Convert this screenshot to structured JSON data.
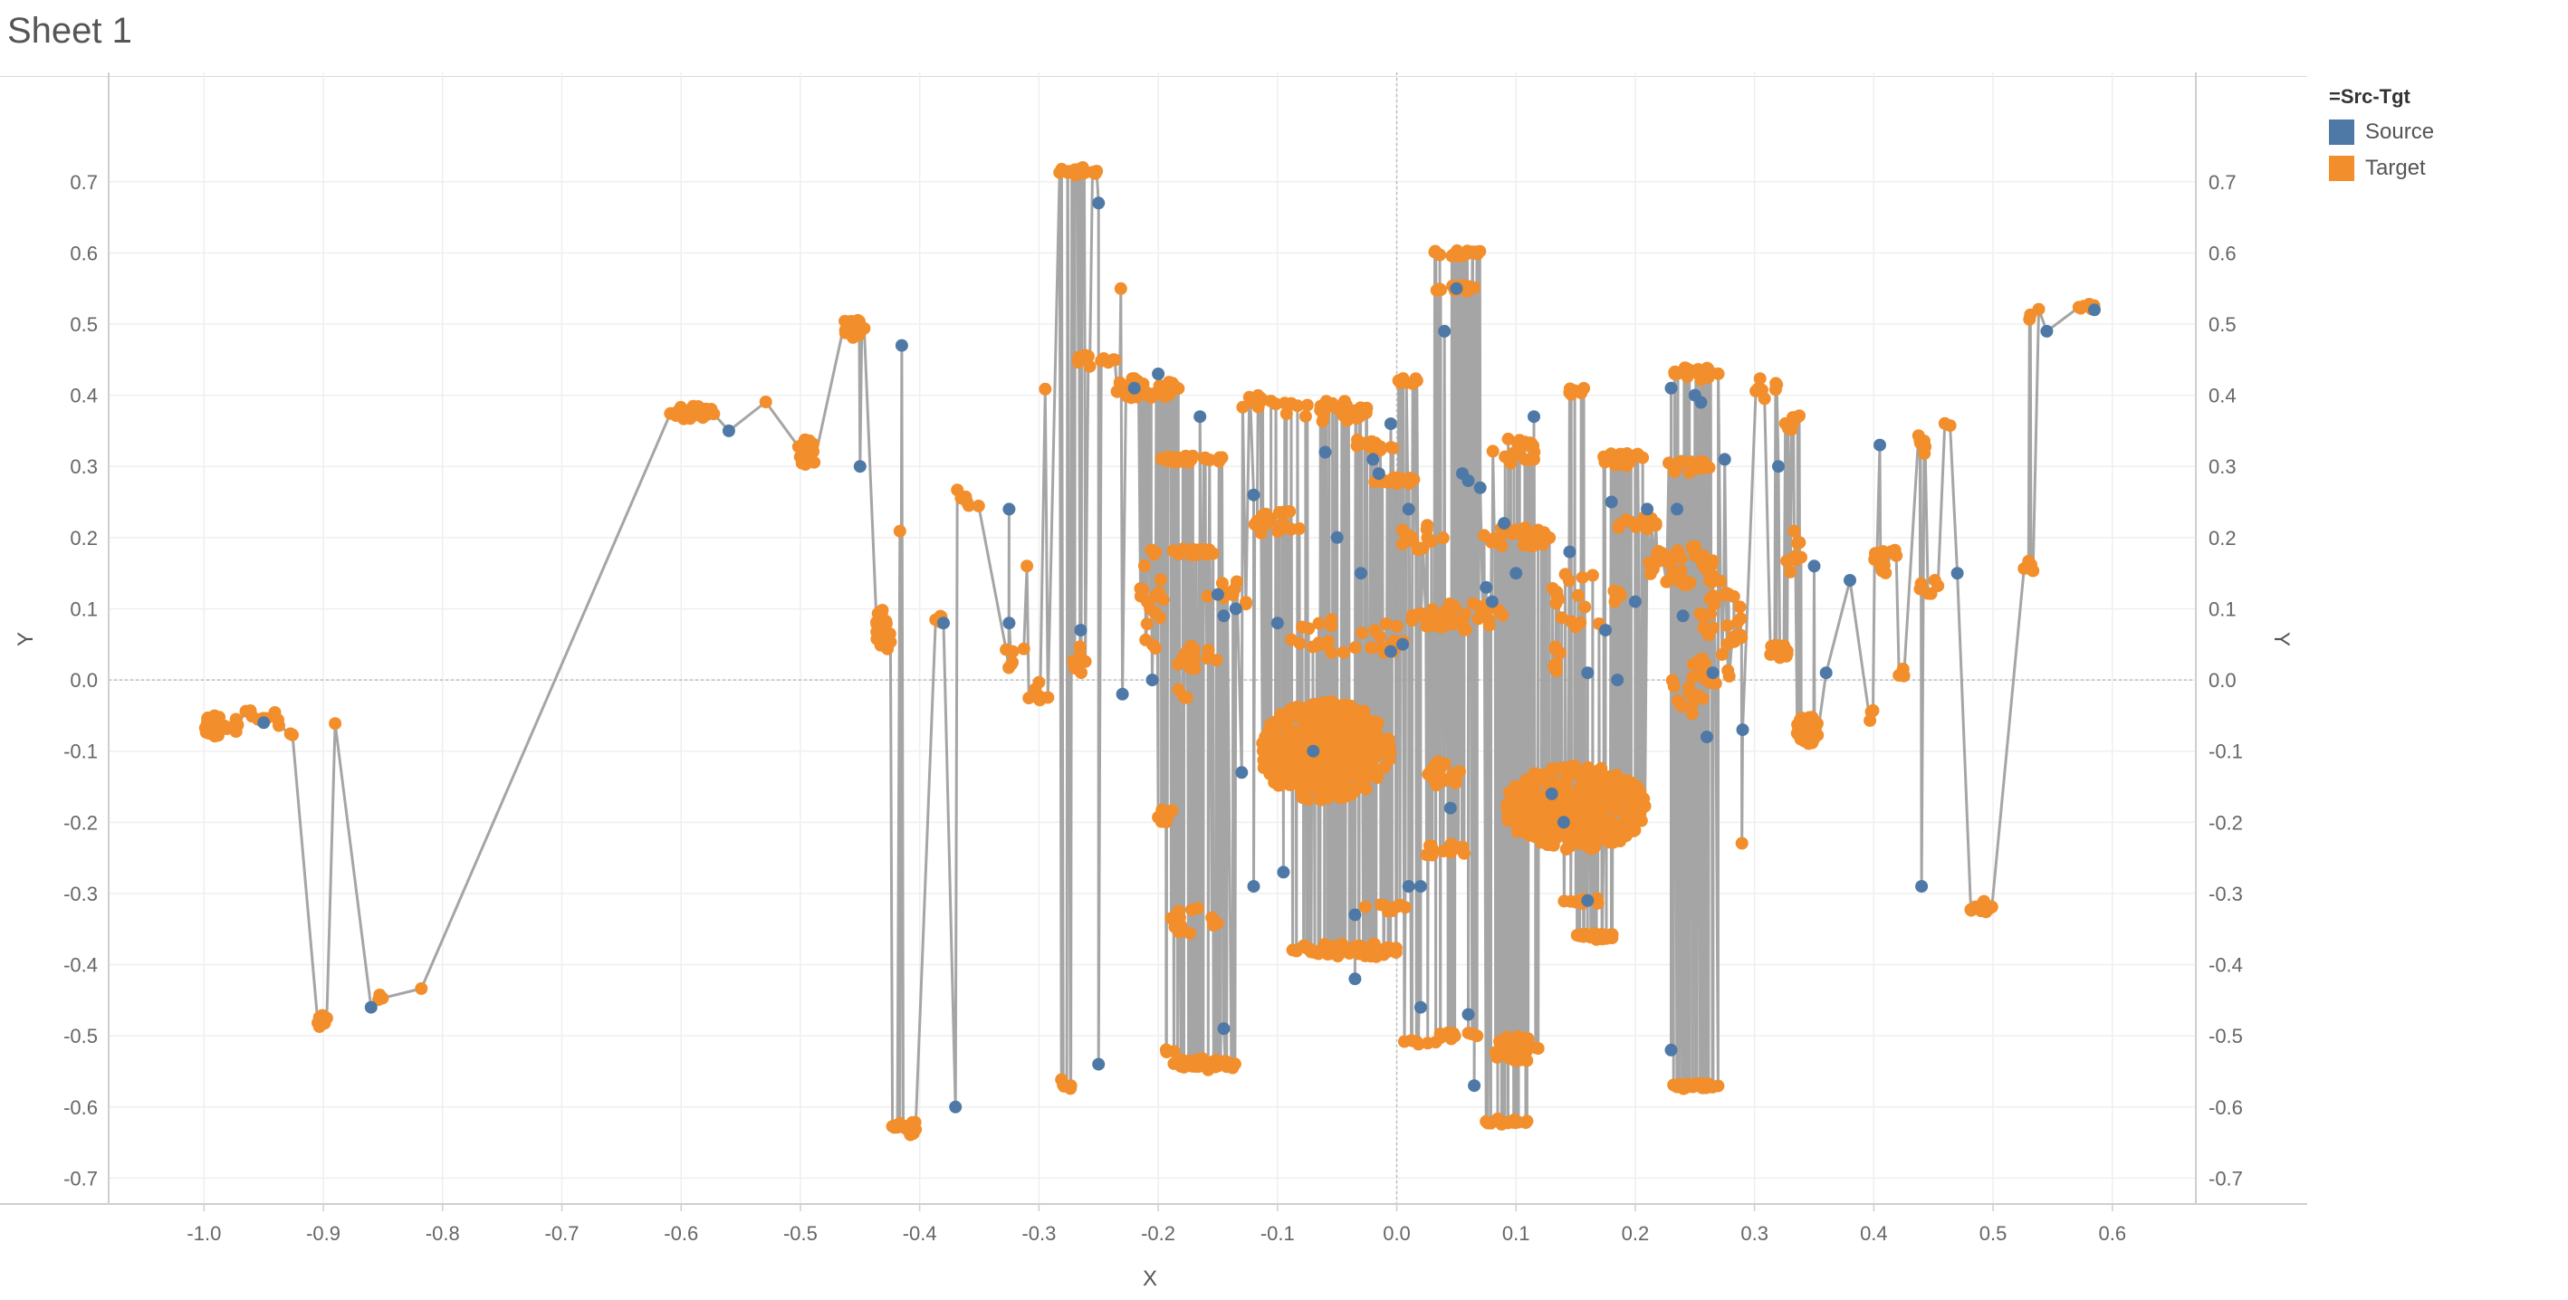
{
  "sheet": {
    "title": "Sheet 1"
  },
  "legend": {
    "title": "=Src-Tgt",
    "items": [
      {
        "label": "Source",
        "color": "#4e79a7"
      },
      {
        "label": "Target",
        "color": "#f28e2b"
      }
    ]
  },
  "chart_data": {
    "type": "scatter",
    "xlabel": "X",
    "ylabel": "Y",
    "xlim": [
      -1.08,
      0.67
    ],
    "ylim": [
      -0.73,
      0.79
    ],
    "x_ticks": [
      "-1.0",
      "-0.9",
      "-0.8",
      "-0.7",
      "-0.6",
      "-0.5",
      "-0.4",
      "-0.3",
      "-0.2",
      "-0.1",
      "0.0",
      "0.1",
      "0.2",
      "0.3",
      "0.4",
      "0.5",
      "0.6"
    ],
    "y_ticks": [
      "0.7",
      "0.6",
      "0.5",
      "0.4",
      "0.3",
      "0.2",
      "0.1",
      "0.0",
      "-0.1",
      "-0.2",
      "-0.3",
      "-0.4",
      "-0.5",
      "-0.6",
      "-0.7"
    ],
    "grid": true,
    "dual_y_axis": true,
    "legend_position": "top-right",
    "line_color": "#a0a0a0",
    "series": [
      {
        "name": "Source",
        "color": "#4e79a7",
        "points": [
          [
            -0.95,
            -0.06
          ],
          [
            -0.86,
            -0.46
          ],
          [
            -0.56,
            0.35
          ],
          [
            -0.45,
            0.3
          ],
          [
            -0.415,
            0.47
          ],
          [
            -0.37,
            -0.6
          ],
          [
            -0.38,
            0.08
          ],
          [
            -0.325,
            0.24
          ],
          [
            -0.325,
            0.08
          ],
          [
            -0.265,
            0.07
          ],
          [
            -0.25,
            0.67
          ],
          [
            -0.25,
            -0.54
          ],
          [
            -0.23,
            -0.02
          ],
          [
            -0.22,
            0.41
          ],
          [
            -0.2,
            0.43
          ],
          [
            -0.205,
            0.0
          ],
          [
            -0.165,
            0.37
          ],
          [
            -0.15,
            0.12
          ],
          [
            -0.145,
            0.09
          ],
          [
            -0.145,
            -0.49
          ],
          [
            -0.135,
            0.1
          ],
          [
            -0.13,
            -0.13
          ],
          [
            -0.12,
            0.26
          ],
          [
            -0.12,
            -0.29
          ],
          [
            -0.1,
            0.08
          ],
          [
            -0.095,
            -0.27
          ],
          [
            -0.07,
            -0.1
          ],
          [
            -0.06,
            0.32
          ],
          [
            -0.05,
            0.2
          ],
          [
            -0.035,
            -0.33
          ],
          [
            -0.035,
            -0.42
          ],
          [
            -0.03,
            0.15
          ],
          [
            -0.02,
            0.31
          ],
          [
            -0.015,
            0.29
          ],
          [
            -0.005,
            0.04
          ],
          [
            -0.005,
            0.36
          ],
          [
            0.005,
            0.05
          ],
          [
            0.01,
            0.24
          ],
          [
            0.01,
            -0.29
          ],
          [
            0.02,
            -0.29
          ],
          [
            0.02,
            -0.46
          ],
          [
            0.04,
            0.49
          ],
          [
            0.045,
            -0.18
          ],
          [
            0.05,
            0.55
          ],
          [
            0.055,
            0.29
          ],
          [
            0.06,
            0.28
          ],
          [
            0.06,
            -0.47
          ],
          [
            0.065,
            -0.57
          ],
          [
            0.07,
            0.27
          ],
          [
            0.075,
            0.13
          ],
          [
            0.08,
            0.11
          ],
          [
            0.09,
            0.22
          ],
          [
            0.1,
            0.15
          ],
          [
            0.115,
            0.37
          ],
          [
            0.13,
            -0.16
          ],
          [
            0.14,
            -0.2
          ],
          [
            0.145,
            0.18
          ],
          [
            0.16,
            0.01
          ],
          [
            0.16,
            -0.31
          ],
          [
            0.175,
            0.07
          ],
          [
            0.18,
            0.25
          ],
          [
            0.185,
            0.0
          ],
          [
            0.2,
            0.11
          ],
          [
            0.21,
            0.24
          ],
          [
            0.235,
            0.24
          ],
          [
            0.23,
            0.41
          ],
          [
            0.23,
            -0.52
          ],
          [
            0.24,
            0.09
          ],
          [
            0.25,
            0.4
          ],
          [
            0.255,
            0.39
          ],
          [
            0.26,
            -0.08
          ],
          [
            0.265,
            0.01
          ],
          [
            0.275,
            0.31
          ],
          [
            0.29,
            -0.07
          ],
          [
            0.32,
            0.3
          ],
          [
            0.35,
            0.16
          ],
          [
            0.36,
            0.01
          ],
          [
            0.38,
            0.14
          ],
          [
            0.405,
            0.33
          ],
          [
            0.44,
            -0.29
          ],
          [
            0.47,
            0.15
          ],
          [
            0.545,
            0.49
          ],
          [
            0.585,
            0.52
          ]
        ]
      },
      {
        "name": "Target",
        "color": "#f28e2b",
        "clusters": [
          [
            -0.985,
            -0.065,
            0.015,
            0.02,
            30
          ],
          [
            -0.95,
            -0.05,
            0.02,
            0.01,
            8
          ],
          [
            -0.93,
            -0.07,
            0.01,
            0.01,
            3
          ],
          [
            -0.9,
            -0.48,
            0.005,
            0.01,
            8
          ],
          [
            -0.89,
            -0.06,
            0.002,
            0.002,
            1
          ],
          [
            -0.855,
            -0.445,
            0.01,
            0.005,
            3
          ],
          [
            -0.82,
            -0.435,
            0.003,
            0.003,
            1
          ],
          [
            -0.59,
            0.375,
            0.02,
            0.01,
            30
          ],
          [
            -0.53,
            0.39,
            0.002,
            0.002,
            1
          ],
          [
            -0.495,
            0.32,
            0.01,
            0.02,
            20
          ],
          [
            -0.455,
            0.495,
            0.01,
            0.015,
            20
          ],
          [
            -0.43,
            0.07,
            0.01,
            0.03,
            20
          ],
          [
            -0.41,
            -0.63,
            0.015,
            0.01,
            15
          ],
          [
            -0.415,
            0.21,
            0.002,
            0.002,
            1
          ],
          [
            -0.38,
            0.08,
            0.01,
            0.01,
            4
          ],
          [
            -0.37,
            0.26,
            0.01,
            0.01,
            4
          ],
          [
            -0.355,
            0.25,
            0.008,
            0.008,
            3
          ],
          [
            -0.32,
            0.04,
            0.01,
            0.03,
            6
          ],
          [
            -0.31,
            0.16,
            0.002,
            0.002,
            1
          ],
          [
            -0.3,
            -0.02,
            0.01,
            0.02,
            8
          ],
          [
            -0.295,
            0.41,
            0.002,
            0.002,
            1
          ],
          [
            -0.28,
            -0.57,
            0.01,
            0.01,
            8
          ],
          [
            -0.265,
            0.715,
            0.02,
            0.006,
            20
          ],
          [
            -0.26,
            0.45,
            0.01,
            0.01,
            5
          ],
          [
            -0.265,
            0.03,
            0.008,
            0.02,
            6
          ],
          [
            -0.24,
            0.45,
            0.01,
            0.005,
            5
          ],
          [
            -0.23,
            0.55,
            0.002,
            0.002,
            1
          ],
          [
            -0.21,
            0.41,
            0.03,
            0.015,
            40
          ],
          [
            -0.205,
            0.12,
            0.01,
            0.08,
            20
          ],
          [
            -0.195,
            -0.19,
            0.01,
            0.01,
            10
          ],
          [
            -0.19,
            -0.52,
            0.005,
            0.005,
            3
          ],
          [
            -0.17,
            0.31,
            0.03,
            0.005,
            30
          ],
          [
            -0.17,
            0.18,
            0.02,
            0.005,
            20
          ],
          [
            -0.16,
            -0.54,
            0.03,
            0.008,
            30
          ],
          [
            -0.17,
            -0.34,
            0.02,
            0.02,
            15
          ],
          [
            -0.17,
            0.03,
            0.02,
            0.02,
            15
          ],
          [
            -0.14,
            0.12,
            0.02,
            0.02,
            10
          ],
          [
            -0.12,
            0.39,
            0.02,
            0.01,
            10
          ],
          [
            -0.1,
            0.22,
            0.02,
            0.02,
            20
          ],
          [
            -0.06,
            0.38,
            0.04,
            0.02,
            30
          ],
          [
            -0.04,
            -0.38,
            0.05,
            0.01,
            50
          ],
          [
            -0.06,
            -0.1,
            0.055,
            0.07,
            400
          ],
          [
            -0.04,
            0.06,
            0.05,
            0.03,
            30
          ],
          [
            -0.02,
            0.33,
            0.02,
            0.01,
            15
          ],
          [
            0.0,
            0.28,
            0.02,
            0.005,
            15
          ],
          [
            0.02,
            0.2,
            0.02,
            0.02,
            15
          ],
          [
            -0.01,
            -0.32,
            0.02,
            0.005,
            10
          ],
          [
            0.01,
            0.42,
            0.01,
            0.005,
            8
          ],
          [
            0.02,
            -0.51,
            0.015,
            0.005,
            8
          ],
          [
            0.05,
            0.6,
            0.025,
            0.005,
            20
          ],
          [
            0.05,
            0.55,
            0.02,
            0.005,
            20
          ],
          [
            0.05,
            0.09,
            0.04,
            0.02,
            40
          ],
          [
            0.04,
            -0.13,
            0.015,
            0.02,
            15
          ],
          [
            0.04,
            -0.24,
            0.02,
            0.01,
            15
          ],
          [
            0.05,
            -0.5,
            0.02,
            0.005,
            10
          ],
          [
            0.1,
            -0.52,
            0.02,
            0.02,
            30
          ],
          [
            0.09,
            -0.62,
            0.02,
            0.005,
            15
          ],
          [
            0.1,
            0.2,
            0.03,
            0.015,
            40
          ],
          [
            0.1,
            0.32,
            0.02,
            0.02,
            20
          ],
          [
            0.15,
            -0.18,
            0.06,
            0.06,
            400
          ],
          [
            0.15,
            0.41,
            0.01,
            0.02,
            6
          ],
          [
            0.13,
            0.03,
            0.01,
            0.02,
            6
          ],
          [
            0.16,
            0.12,
            0.03,
            0.05,
            20
          ],
          [
            0.19,
            0.31,
            0.02,
            0.01,
            30
          ],
          [
            0.2,
            0.22,
            0.02,
            0.01,
            15
          ],
          [
            0.17,
            -0.36,
            0.02,
            0.005,
            20
          ],
          [
            0.16,
            -0.31,
            0.02,
            0.005,
            10
          ],
          [
            0.25,
            0.43,
            0.02,
            0.01,
            25
          ],
          [
            0.245,
            0.3,
            0.02,
            0.01,
            15
          ],
          [
            0.24,
            0.16,
            0.03,
            0.03,
            40
          ],
          [
            0.25,
            0.0,
            0.02,
            0.05,
            20
          ],
          [
            0.25,
            -0.57,
            0.02,
            0.005,
            25
          ],
          [
            0.27,
            0.07,
            0.02,
            0.08,
            30
          ],
          [
            0.285,
            0.06,
            0.01,
            0.04,
            8
          ],
          [
            0.31,
            0.41,
            0.01,
            0.02,
            8
          ],
          [
            0.32,
            0.04,
            0.01,
            0.01,
            15
          ],
          [
            0.33,
            0.37,
            0.01,
            0.02,
            8
          ],
          [
            0.345,
            -0.07,
            0.01,
            0.02,
            50
          ],
          [
            0.33,
            0.19,
            0.01,
            0.04,
            8
          ],
          [
            0.4,
            -0.05,
            0.005,
            0.01,
            4
          ],
          [
            0.41,
            0.17,
            0.01,
            0.02,
            15
          ],
          [
            0.425,
            0.01,
            0.005,
            0.01,
            4
          ],
          [
            0.44,
            0.33,
            0.005,
            0.02,
            6
          ],
          [
            0.445,
            0.14,
            0.01,
            0.02,
            6
          ],
          [
            0.46,
            0.36,
            0.005,
            0.005,
            2
          ],
          [
            0.49,
            -0.32,
            0.01,
            0.01,
            12
          ],
          [
            0.53,
            0.16,
            0.005,
            0.01,
            5
          ],
          [
            0.53,
            0.51,
            0.002,
            0.005,
            2
          ],
          [
            0.54,
            0.52,
            0.002,
            0.002,
            1
          ],
          [
            0.58,
            0.525,
            0.01,
            0.005,
            8
          ],
          [
            0.29,
            -0.23,
            0.002,
            0.002,
            1
          ],
          [
            -0.18,
            -0.02,
            0.005,
            0.01,
            3
          ]
        ]
      }
    ]
  }
}
